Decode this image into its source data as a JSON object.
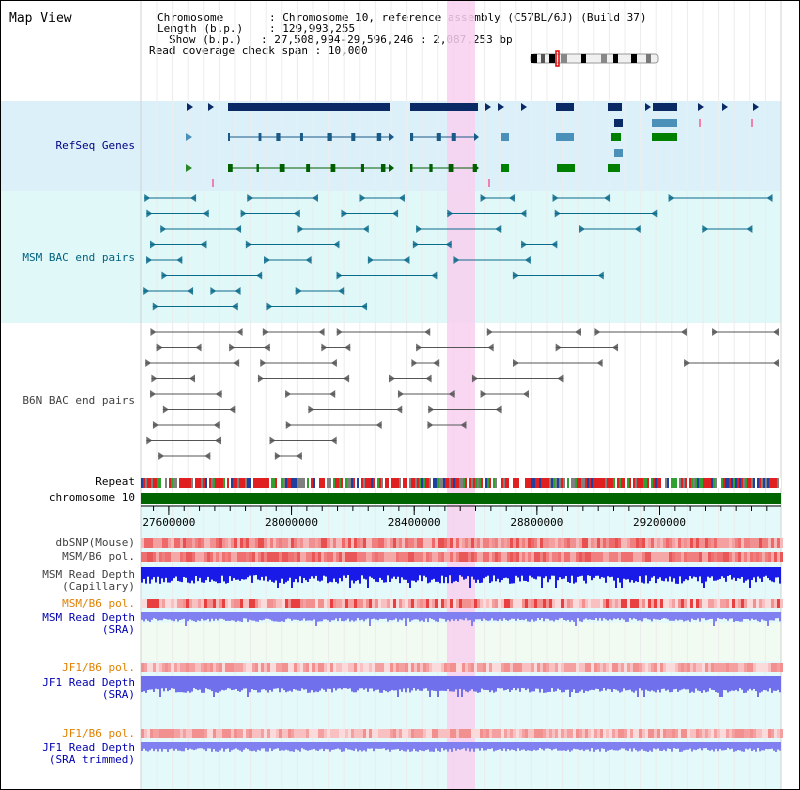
{
  "title": "Map View",
  "info": {
    "chromosome_key": "Chromosome",
    "chromosome_val": "Chromosome 10, reference assembly (C57BL/6J) (Build 37)",
    "length_key": "Length (b.p.)",
    "length_val": "129,993,255",
    "show_key": "Show (b.p.)",
    "show_val": "27,508,994-29,596,246 : 2,087,253 bp",
    "span_key": "Read coverage check span",
    "span_val": "10,000"
  },
  "tracks": {
    "refseq": "RefSeq Genes",
    "msm_bac": "MSM BAC end pairs",
    "b6n_bac": "B6N BAC end pairs",
    "repeat": "Repeat",
    "chromosome": "chromosome 10",
    "dbsnp": "dbSNP(Mouse)",
    "msm_b6_pol": "MSM/B6 pol.",
    "msm_depth_cap": "MSM Read Depth\n(Capillary)",
    "msm_b6_pol2": "MSM/B6 pol.",
    "msm_depth_sra": "MSM Read Depth\n(SRA)",
    "jf1_b6_pol": "JF1/B6 pol.",
    "jf1_depth_sra": "JF1 Read Depth\n(SRA)",
    "jf1_b6_pol2": "JF1/B6 pol.",
    "jf1_depth_trim": "JF1 Read Depth\n(SRA trimmed)"
  },
  "axis": {
    "ticks": [
      "27600000",
      "28000000",
      "28400000",
      "28800000",
      "29200000"
    ],
    "tick_values": [
      27600000,
      28000000,
      28400000,
      28800000,
      29200000
    ]
  },
  "colors": {
    "refseq_label": "#000080",
    "msm_label": "#006080",
    "b6n_label": "#404040",
    "pol_label": "#e08000",
    "depth_label": "#0000b0",
    "refseq_bg": "#dcf0fa",
    "msm_bg": "#e0f8f8",
    "highlight": "#f8d0f0",
    "chromosome_bar": "#006400"
  }
}
